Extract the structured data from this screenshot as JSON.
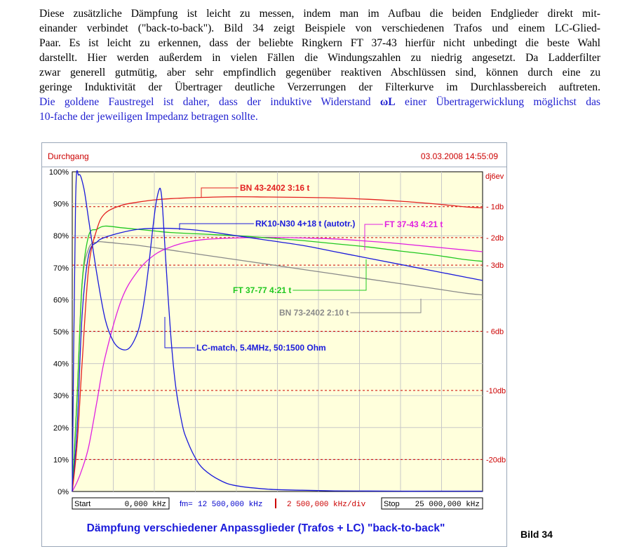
{
  "text": {
    "paragraph_lines": [
      "Diese zusätzliche Dämpfung ist leicht zu messen, indem man im Aufbau die beiden Endglieder direkt mit-",
      "einander verbindet (\"back-to-back\"). Bild 34 zeigt Beispiele von verschiedenen Trafos und einem LC-Glied-",
      "Paar. Es ist leicht zu erkennen, dass der beliebte Ringkern FT 37-43 hierfür nicht unbedingt die beste Wahl",
      "darstellt. Hier werden außerdem in vielen Fällen die Windungszahlen zu niedrig angesetzt. Da Ladderfilter",
      "zwar generell gutmütig, aber sehr empfindlich gegenüber reaktiven Abschlüssen sind, können durch eine zu",
      "geringe Induktivität der Übertrager deutliche Verzerrungen der Filterkurve im Durchlassbereich auftreten."
    ],
    "blue_line1_a": "Die goldene Faustregel ist daher, dass der induktive Widerstand ",
    "blue_line1_omega": "ωL",
    "blue_line1_b": " einer Übertragerwicklung möglichst das",
    "blue_line2": "10-fache der jeweiligen Impedanz betragen sollte.",
    "bild_label": "Bild 34"
  },
  "figure": {
    "header_left": "Durchgang",
    "header_right": "03.03.2008 14:55:09",
    "y_ticks_left": [
      "100%",
      "90%",
      "80%",
      "70%",
      "60%",
      "50%",
      "40%",
      "30%",
      "20%",
      "10%",
      "0%"
    ],
    "y_ticks_right_top": "dj6ev",
    "db_labels": [
      "- 1db",
      "- 2db",
      "- 3db",
      "- 6db",
      "-10db",
      "-20db"
    ],
    "bottom": {
      "start_label": "Start",
      "start_value": "0,000 kHz",
      "center_label": "fm=",
      "center_value": "12 500,000 kHz",
      "div_value": "2 500,000 kHz/div",
      "stop_label": "Stop",
      "stop_value": "25 000,000 kHz"
    },
    "caption": "Dämpfung verschiedener Anpassglieder (Trafos + LC) \"back-to-back\"",
    "colors": {
      "plot_bg": "#ffffdc",
      "grid": "#c8c8c8",
      "db_line": "#cc0000",
      "red": "#e32020",
      "blue": "#1a1adb",
      "green": "#20c820",
      "magenta": "#e020e0",
      "gray": "#8a8a8a",
      "caption": "#1a1adb"
    }
  },
  "chart_data": {
    "type": "line",
    "xlabel": "",
    "ylabel": "",
    "xlim": [
      0,
      25000
    ],
    "ylim": [
      0,
      100
    ],
    "x_unit": "kHz",
    "db_reference_lines": [
      {
        "label": "- 1db",
        "y": 89.1
      },
      {
        "label": "- 2db",
        "y": 79.4
      },
      {
        "label": "- 3db",
        "y": 70.8
      },
      {
        "label": "- 6db",
        "y": 50.1
      },
      {
        "label": "-10db",
        "y": 31.6
      },
      {
        "label": "-20db",
        "y": 10.0
      }
    ],
    "series": [
      {
        "name": "BN 43-2402 3:16 t",
        "color": "red",
        "x": [
          0,
          300,
          600,
          1000,
          1500,
          2000,
          3000,
          4000,
          5000,
          6000,
          8000,
          10000,
          12000,
          14000,
          16000,
          18000,
          20000,
          22000,
          23000,
          24000,
          25000
        ],
        "y": [
          0,
          15,
          40,
          70,
          82,
          87,
          89.5,
          90.5,
          91.2,
          91.6,
          92,
          92.2,
          92.1,
          92,
          91.8,
          91.4,
          90.8,
          90,
          89.5,
          89,
          88.7
        ]
      },
      {
        "name": "RK10-N30 4+18 t (autotr.)",
        "color": "blue",
        "x": [
          0,
          300,
          600,
          1000,
          1500,
          2000,
          3000,
          4000,
          5000,
          6000,
          7000,
          8000,
          10000,
          12000,
          14000,
          16000,
          18000,
          20000,
          22000,
          24000,
          25000
        ],
        "y": [
          0,
          20,
          55,
          74,
          78,
          79.5,
          81,
          82,
          82.3,
          82.3,
          82,
          81.5,
          80,
          78.5,
          77,
          75,
          73,
          71,
          69,
          67,
          66
        ]
      },
      {
        "name": "FT 37-43 4:21 t",
        "color": "magenta",
        "x": [
          0,
          300,
          600,
          1000,
          1500,
          2000,
          3000,
          4000,
          5000,
          6000,
          7000,
          8000,
          10000,
          12000,
          14000,
          16000,
          18000,
          20000,
          22000,
          24000,
          25000
        ],
        "y": [
          0,
          3,
          7,
          14,
          28,
          42,
          60,
          69,
          74,
          76.5,
          78,
          78.8,
          79.3,
          79.5,
          79.3,
          79,
          78.3,
          77.5,
          76.5,
          75.5,
          75
        ]
      },
      {
        "name": "FT 37-77 4:21 t",
        "color": "green",
        "x": [
          0,
          300,
          600,
          1000,
          1500,
          2000,
          3000,
          4000,
          5000,
          6000,
          8000,
          10000,
          12000,
          14000,
          16000,
          18000,
          20000,
          22000,
          24000,
          25000
        ],
        "y": [
          0,
          30,
          65,
          80,
          82,
          83,
          82.5,
          82,
          81.5,
          81,
          80.5,
          80,
          79.3,
          78.5,
          77.5,
          76.5,
          75.2,
          74,
          72.5,
          72
        ]
      },
      {
        "name": "BN 73-2402 2:10 t",
        "color": "gray",
        "x": [
          0,
          300,
          600,
          1000,
          1500,
          2000,
          3000,
          4000,
          6000,
          8000,
          10000,
          12000,
          14000,
          16000,
          18000,
          20000,
          22000,
          24000,
          25000
        ],
        "y": [
          0,
          30,
          65,
          76,
          78,
          78,
          77.5,
          77,
          75.5,
          74,
          72.5,
          71,
          69.5,
          68,
          66.5,
          65,
          63.5,
          62,
          61.5
        ]
      },
      {
        "name": "LC-match, 5.4MHz, 50:1500 Ohm",
        "color": "blue",
        "x": [
          0,
          200,
          400,
          700,
          1000,
          1500,
          2000,
          2500,
          3000,
          3500,
          4000,
          4300,
          4600,
          4900,
          5100,
          5300,
          5400,
          5500,
          5700,
          6000,
          6300,
          6700,
          7000,
          7500,
          8000,
          9000,
          10000,
          12000,
          14000,
          16000,
          18000,
          20000,
          22000,
          25000
        ],
        "y": [
          0,
          90,
          99,
          95,
          85,
          68,
          54,
          47,
          44.5,
          45,
          50,
          57,
          68,
          82,
          90,
          94.5,
          94,
          89,
          72,
          49,
          33,
          21,
          16,
          10.5,
          7,
          3.5,
          1.8,
          0.7,
          0.4,
          0.2,
          0.15,
          0.1,
          0.1,
          0.1
        ]
      }
    ],
    "annotations": [
      "BN 43-2402 3:16 t",
      "RK10-N30 4+18 t (autotr.)",
      "FT 37-43 4:21 t",
      "FT 37-77 4:21 t",
      "BN 73-2402 2:10 t",
      "LC-match, 5.4MHz, 50:1500 Ohm"
    ]
  }
}
